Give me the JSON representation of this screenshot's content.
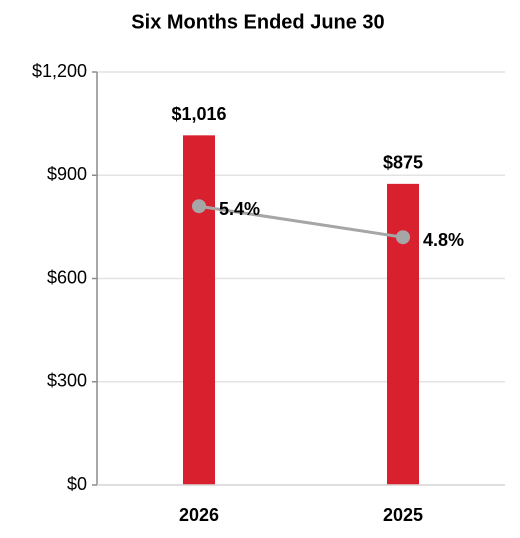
{
  "chart_data": {
    "type": "bar",
    "title": "Six Months Ended June 30",
    "categories": [
      "2026",
      "2025"
    ],
    "series": [
      {
        "type": "bar",
        "color": "#d9202f",
        "values": [
          1016,
          875
        ],
        "value_labels": [
          "$1,016",
          "$875"
        ]
      },
      {
        "type": "line",
        "axis": "y2",
        "color": "#a6a6a6",
        "values": [
          5.4,
          4.8
        ],
        "value_labels": [
          "5.4%",
          "4.8%"
        ]
      }
    ],
    "ylim": [
      0,
      1200
    ],
    "yticks": [
      {
        "value": 0,
        "label": "$0"
      },
      {
        "value": 300,
        "label": "$300"
      },
      {
        "value": 600,
        "label": "$600"
      },
      {
        "value": 900,
        "label": "$900"
      },
      {
        "value": 1200,
        "label": "$1,200"
      }
    ],
    "y2lim": [
      0,
      8
    ],
    "grid": true
  }
}
